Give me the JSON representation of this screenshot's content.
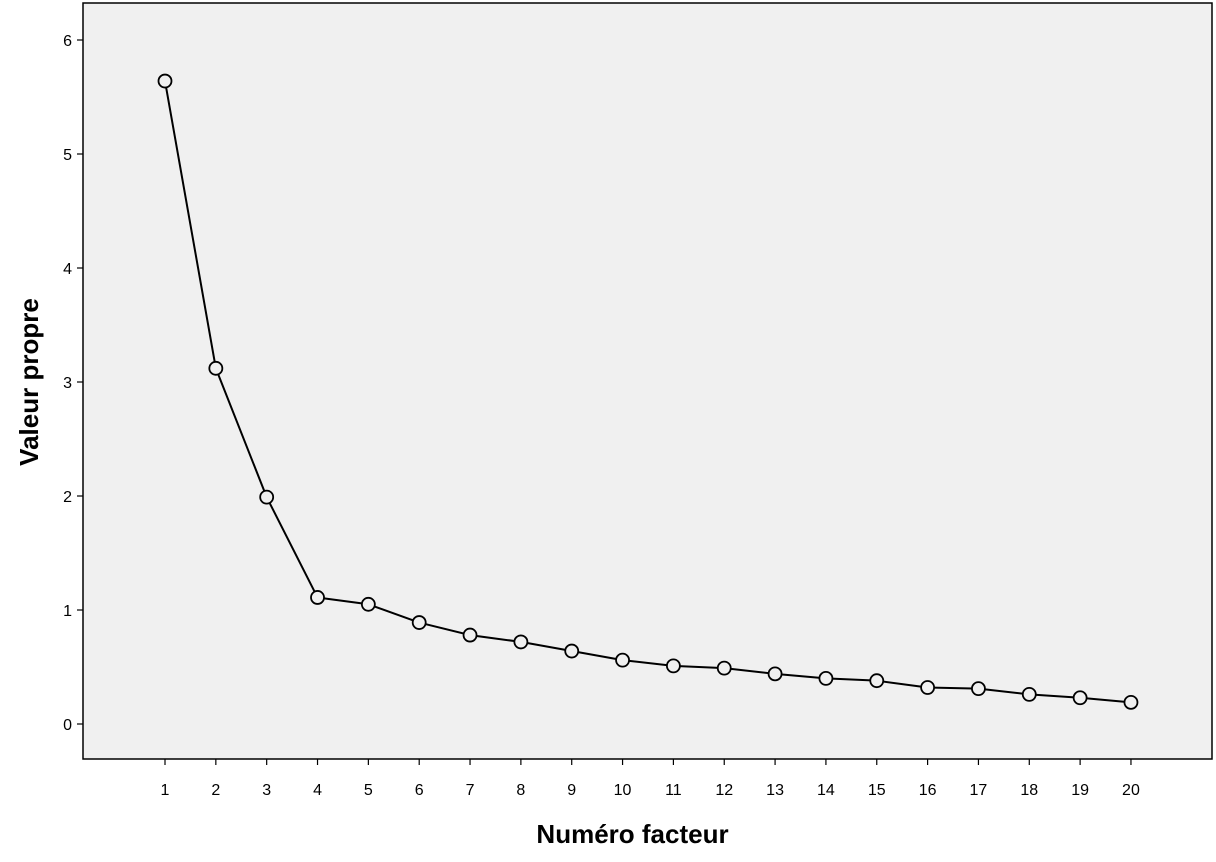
{
  "chart_data": {
    "type": "line",
    "title": "",
    "xlabel": "Numéro facteur",
    "ylabel": "Valeur propre",
    "categories": [
      "1",
      "2",
      "3",
      "4",
      "5",
      "6",
      "7",
      "8",
      "9",
      "10",
      "11",
      "12",
      "13",
      "14",
      "15",
      "16",
      "17",
      "18",
      "19",
      "20"
    ],
    "series": [
      {
        "marker": "open-circle",
        "values": [
          5.64,
          3.12,
          1.99,
          1.11,
          1.05,
          0.89,
          0.78,
          0.72,
          0.64,
          0.56,
          0.51,
          0.49,
          0.44,
          0.4,
          0.38,
          0.32,
          0.31,
          0.26,
          0.23,
          0.19
        ]
      }
    ],
    "ylim": [
      -0.3,
      6.3
    ],
    "yticks": [
      "0",
      "1",
      "2",
      "3",
      "4",
      "5",
      "6"
    ],
    "grid": false,
    "legend": "none",
    "colors": {
      "plot_background": "#f0f0f0",
      "line": "#000000",
      "axis": "#000000"
    }
  }
}
